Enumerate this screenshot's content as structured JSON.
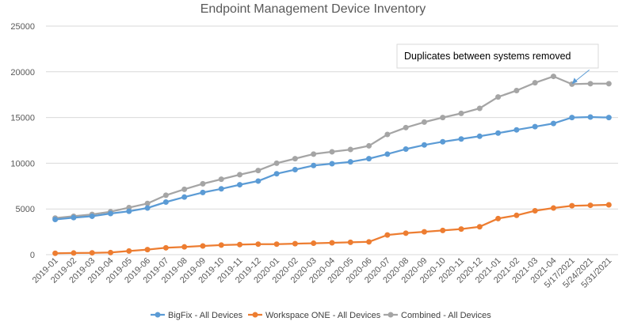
{
  "chart_data": {
    "type": "line",
    "title": "Endpoint Management Device Inventory",
    "xlabel": "",
    "ylabel": "",
    "ylim": [
      0,
      25000
    ],
    "yticks": [
      0,
      5000,
      10000,
      15000,
      20000,
      25000
    ],
    "grid": true,
    "legend_position": "bottom",
    "categories": [
      "2019-01",
      "2019-02",
      "2019-03",
      "2019-04",
      "2019-05",
      "2019-06",
      "2019-07",
      "2019-08",
      "2019-09",
      "2019-10",
      "2019-11",
      "2019-12",
      "2020-01",
      "2020-02",
      "2020-03",
      "2020-04",
      "2020-05",
      "2020-06",
      "2020-07",
      "2020-08",
      "2020-09",
      "2020-10",
      "2020-11",
      "2020-12",
      "2021-01",
      "2021-02",
      "2021-03",
      "2021-04",
      "5/17/2021",
      "5/24/2021",
      "5/31/2021"
    ],
    "series": [
      {
        "name": "BigFix - All Devices",
        "color": "#5b9bd5",
        "values": [
          3850,
          4050,
          4200,
          4500,
          4750,
          5100,
          5750,
          6300,
          6800,
          7200,
          7650,
          8050,
          8850,
          9300,
          9750,
          9950,
          10150,
          10500,
          11000,
          11550,
          12000,
          12350,
          12650,
          12950,
          13300,
          13650,
          14000,
          14350,
          15000,
          15050,
          15000
        ]
      },
      {
        "name": "Workspace ONE - All Devices",
        "color": "#ed7d31",
        "values": [
          150,
          180,
          200,
          230,
          400,
          550,
          750,
          850,
          950,
          1050,
          1100,
          1150,
          1150,
          1200,
          1250,
          1300,
          1350,
          1400,
          2150,
          2350,
          2500,
          2650,
          2800,
          3050,
          3950,
          4300,
          4800,
          5100,
          5350,
          5400,
          5450
        ]
      },
      {
        "name": "Combined - All Devices",
        "color": "#a5a5a5",
        "values": [
          4000,
          4200,
          4400,
          4700,
          5150,
          5600,
          6500,
          7150,
          7750,
          8250,
          8750,
          9200,
          10000,
          10500,
          11000,
          11250,
          11500,
          11900,
          13150,
          13900,
          14500,
          15000,
          15450,
          16000,
          17250,
          17950,
          18800,
          19500,
          18650,
          18700,
          18700
        ]
      }
    ],
    "annotation": {
      "text": "Duplicates between systems removed",
      "target_category": "5/17/2021",
      "target_value": 18650
    }
  }
}
